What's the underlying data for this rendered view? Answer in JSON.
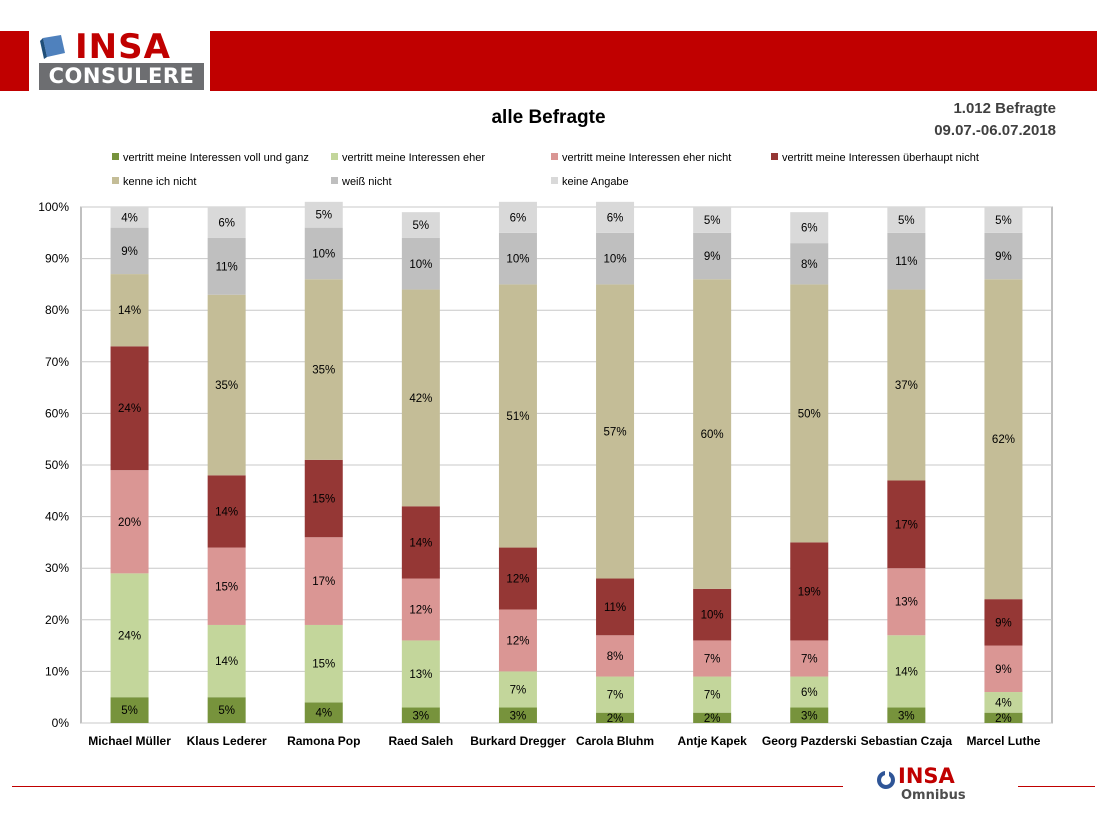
{
  "header": {
    "logo_top": "INSA",
    "logo_bottom": "CONSULERE"
  },
  "title": "alle Befragte",
  "meta": {
    "respondents": "1.012 Befragte",
    "period": "09.07.-06.07.2018"
  },
  "footer": {
    "logo_top": "INSA",
    "logo_bottom": "Omnibus"
  },
  "colors": {
    "brand_red": "#c00000"
  },
  "chart_data": {
    "type": "bar",
    "stacked": true,
    "title": "alle Befragte",
    "categories": [
      "Michael Müller",
      "Klaus Lederer",
      "Ramona Pop",
      "Raed Saleh",
      "Burkard Dregger",
      "Carola Bluhm",
      "Antje Kapek",
      "Georg Pazderski",
      "Sebastian Czaja",
      "Marcel Luthe"
    ],
    "ylim": [
      0,
      100
    ],
    "yticks": [
      "0%",
      "10%",
      "20%",
      "30%",
      "40%",
      "50%",
      "60%",
      "70%",
      "80%",
      "90%",
      "100%"
    ],
    "grid": true,
    "legend_position": "top",
    "series": [
      {
        "name": "vertritt meine Interessen voll und ganz",
        "color": "#77933c",
        "values": [
          5,
          5,
          4,
          3,
          3,
          2,
          2,
          3,
          3,
          2
        ],
        "labels": [
          "5%",
          "5%",
          "4%",
          "3%",
          "3%",
          "2%",
          "2%",
          "3%",
          "3%",
          "2%"
        ]
      },
      {
        "name": "vertritt meine Interessen eher",
        "color": "#c3d69b",
        "values": [
          24,
          14,
          15,
          13,
          7,
          7,
          7,
          6,
          14,
          4
        ],
        "labels": [
          "24%",
          "14%",
          "15%",
          "13%",
          "7%",
          "7%",
          "7%",
          "6%",
          "14%",
          "4%"
        ]
      },
      {
        "name": "vertritt meine Interessen eher nicht",
        "color": "#da9694",
        "values": [
          20,
          15,
          17,
          12,
          12,
          8,
          7,
          7,
          13,
          9
        ],
        "labels": [
          "20%",
          "15%",
          "17%",
          "12%",
          "12%",
          "8%",
          "7%",
          "7%",
          "13%",
          "9%"
        ]
      },
      {
        "name": "vertritt meine Interessen überhaupt nicht",
        "color": "#953735",
        "values": [
          24,
          14,
          15,
          14,
          12,
          11,
          10,
          19,
          17,
          9
        ],
        "labels": [
          "24%",
          "14%",
          "15%",
          "14%",
          "12%",
          "11%",
          "10%",
          "19%",
          "17%",
          "9%"
        ]
      },
      {
        "name": "kenne ich nicht",
        "color": "#c4bd97",
        "values": [
          14,
          35,
          35,
          42,
          51,
          57,
          60,
          50,
          37,
          62
        ],
        "labels": [
          "14%",
          "35%",
          "35%",
          "42%",
          "51%",
          "57%",
          "60%",
          "50%",
          "37%",
          "62%"
        ]
      },
      {
        "name": "weiß nicht",
        "color": "#bfbfbf",
        "values": [
          9,
          11,
          10,
          10,
          10,
          10,
          9,
          8,
          11,
          9
        ],
        "labels": [
          "9%",
          "11%",
          "10%",
          "10%",
          "10%",
          "10%",
          "9%",
          "8%",
          "11%",
          "9%"
        ]
      },
      {
        "name": "keine Angabe",
        "color": "#d9d9d9",
        "values": [
          4,
          6,
          5,
          5,
          6,
          6,
          5,
          6,
          5,
          5
        ],
        "labels": [
          "4%",
          "6%",
          "5%",
          "5%",
          "6%",
          "6%",
          "5%",
          "6%",
          "5%",
          "5%"
        ]
      }
    ]
  }
}
